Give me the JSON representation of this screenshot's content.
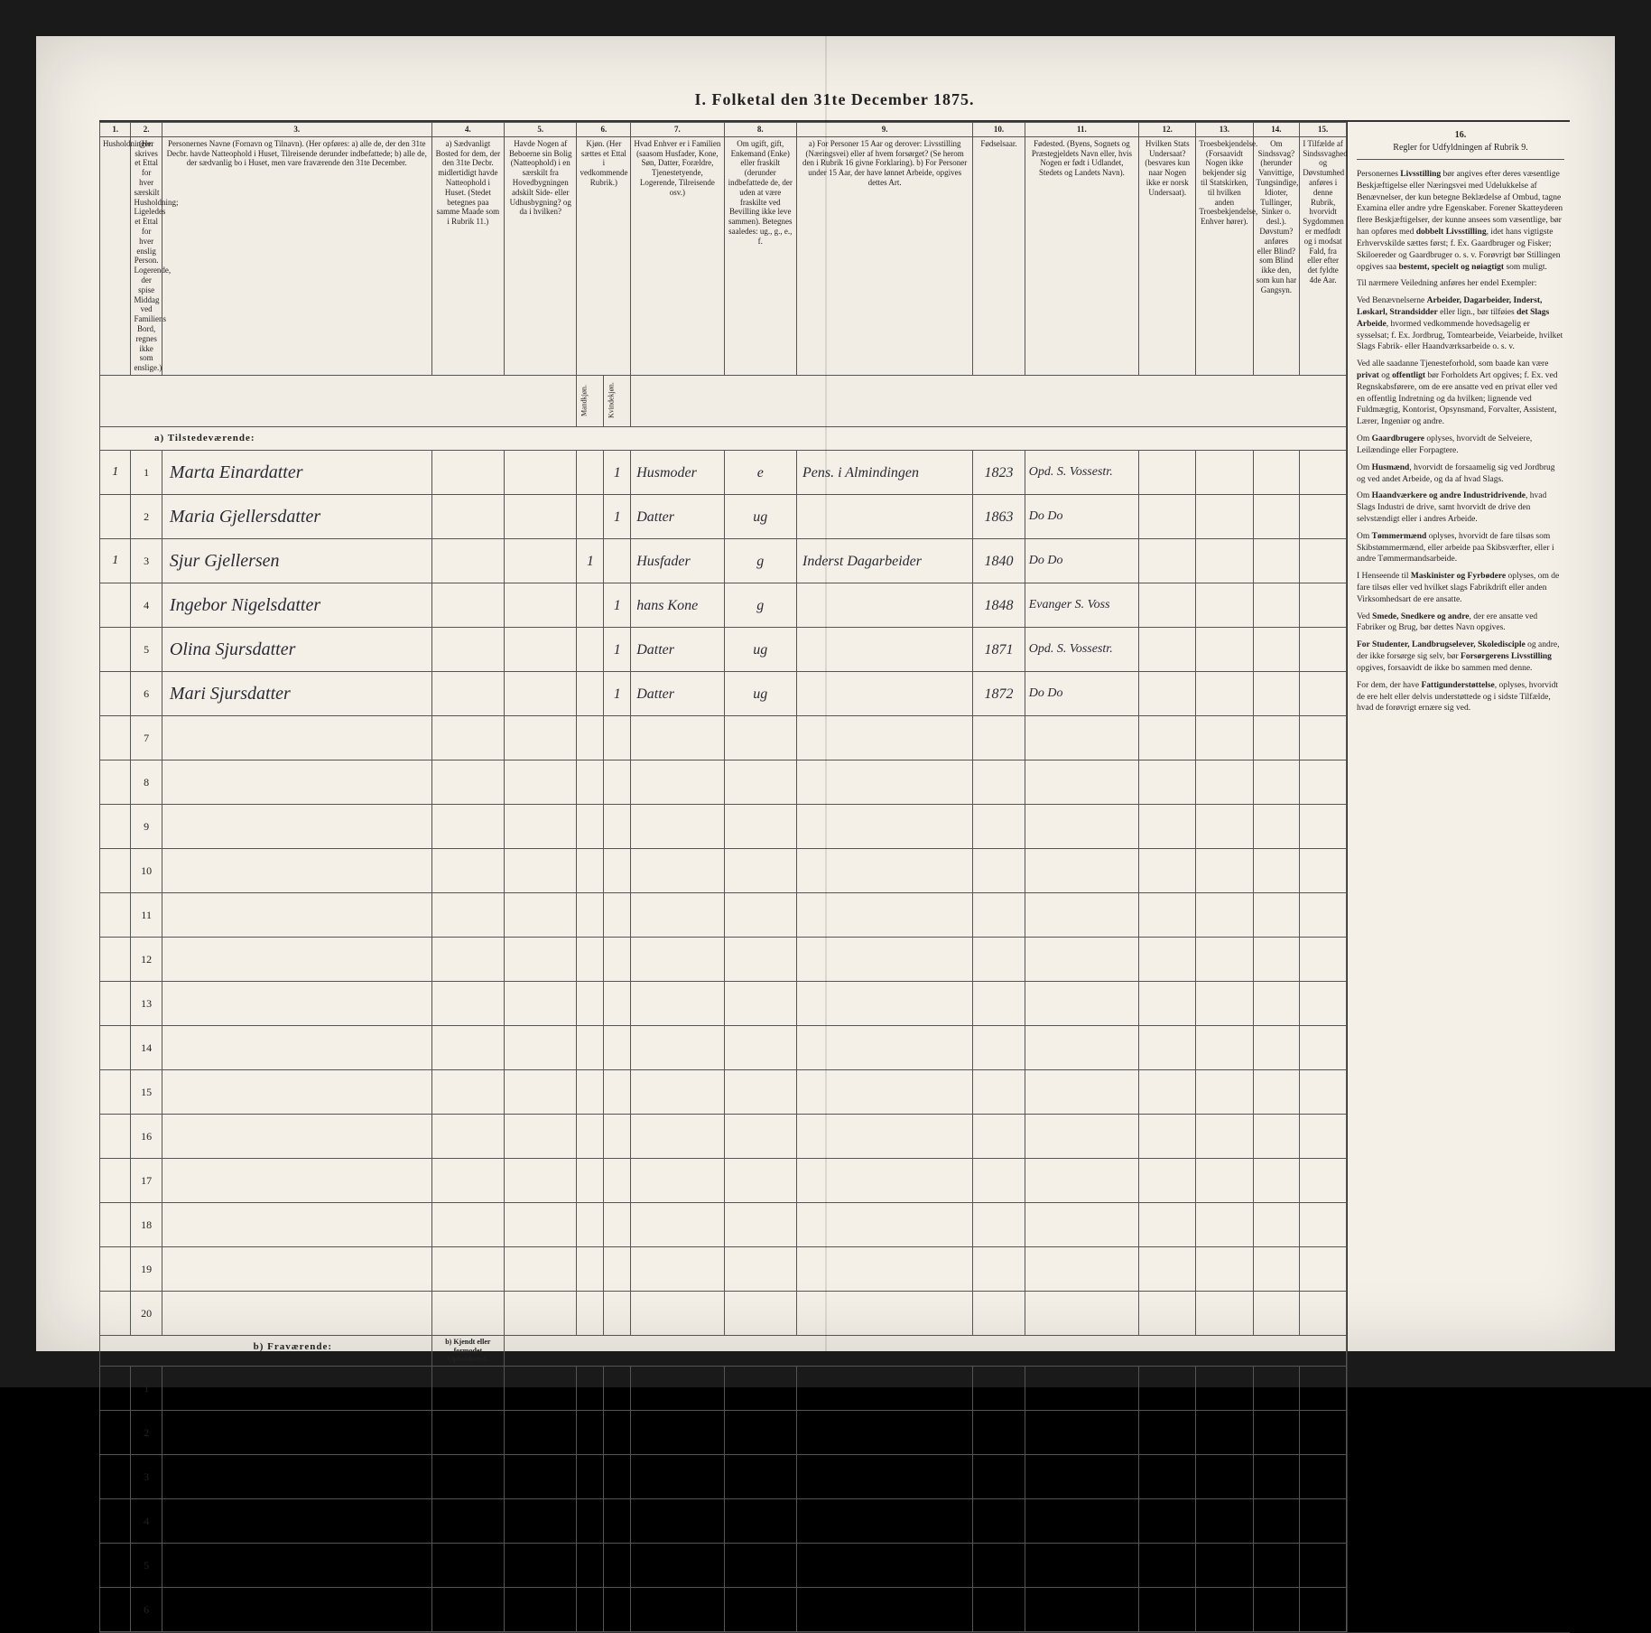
{
  "title": "I.  Folketal den 31te December 1875.",
  "columns": [
    {
      "num": "1.",
      "label": "Husholdninger."
    },
    {
      "num": "2.",
      "label": "(Her skrives et Ettal for hver særskilt Husholdning; Ligeledes et Ettal for hver enslig Person. Logerende, der spise Middag ved Familiens Bord, regnes ikke som enslige.)"
    },
    {
      "num": "3.",
      "label": "Personernes Navne (Fornavn og Tilnavn). (Her opføres: a) alle de, der den 31te Decbr. havde Natteophold i Huset, Tilreisende derunder indbefattede; b) alle de, der sædvanlig bo i Huset, men vare fraværende den 31te December."
    },
    {
      "num": "4.",
      "label": "a) Sædvanligt Bosted for dem, der den 31te Decbr. midlertidigt havde Natteophold i Huset. (Stedet betegnes paa samme Maade som i Rubrik 11.)"
    },
    {
      "num": "5.",
      "label": "Havde Nogen af Beboerne sin Bolig (Natteophold) i en særskilt fra Hovedbygningen adskilt Side- eller Udhusbygning? og da i hvilken?"
    },
    {
      "num": "6.",
      "label": "Kjøn. (Her sættes et Ettal i vedkommende Rubrik.)",
      "sub": [
        "Mandkjøn.",
        "Kvindekjøn."
      ]
    },
    {
      "num": "7.",
      "label": "Hvad Enhver er i Familien (saasom Husfader, Kone, Søn, Datter, Forældre, Tjenestetyende, Logerende, Tilreisende osv.)"
    },
    {
      "num": "8.",
      "label": "Om ugift, gift, Enkemand (Enke) eller fraskilt (derunder indbefattede de, der uden at være fraskilte ved Bevilling ikke leve sammen). Betegnes saaledes: ug., g., e., f."
    },
    {
      "num": "9.",
      "label": "a) For Personer 15 Aar og derover: Livsstilling (Næringsvei) eller af hvem forsørget? (Se herom den i Rubrik 16 givne Forklaring). b) For Personer under 15 Aar, der have lønnet Arbeide, opgives dettes Art."
    },
    {
      "num": "10.",
      "label": "Fødselsaar."
    },
    {
      "num": "11.",
      "label": "Fødested. (Byens, Sognets og Præstegjeldets Navn eller, hvis Nogen er født i Udlandet, Stedets og Landets Navn)."
    },
    {
      "num": "12.",
      "label": "Hvilken Stats Undersaat? (besvares kun naar Nogen ikke er norsk Undersaat)."
    },
    {
      "num": "13.",
      "label": "Troesbekjendelse. (Forsaavidt Nogen ikke bekjender sig til Statskirken, til hvilken anden Troesbekjendelse, Enhver hører)."
    },
    {
      "num": "14.",
      "label": "Om Sindssvag? (herunder Vanvittige, Tungsindige, Idioter, Tullinger, Sinker o. desl.). Døvstum? anføres eller Blind? som Blind ikke den, som kun har Gangsyn."
    },
    {
      "num": "15.",
      "label": "I Tilfælde af Sindssvaghed og Døvstumhed anføres i denne Rubrik, hvorvidt Sygdommen er medfødt og i modsat Fald, fra eller efter det fyldte 4de Aar."
    }
  ],
  "instructions_header": "Regler for Udfyldningen af Rubrik 9.",
  "instructions": [
    "Personernes <b>Livsstilling</b> bør angives efter deres væsentlige Beskjæftigelse eller Næringsvei med Udelukkelse af Benævnelser, der kun betegne Beklædelse af Ombud, tagne Examina eller andre ydre Egenskaber. Forener Skatteyderen flere Beskjæftigelser, der kunne ansees som væsentlige, bør han opføres med <b>dobbelt Livsstilling</b>, idet hans vigtigste Erhvervskilde sættes først; f. Ex. Gaardbruger og Fisker; Skiloereder og Gaardbruger o. s. v. Forøvrigt bør Stillingen opgives saa <b>bestemt, specielt og nøiagtigt</b> som muligt.",
    "Til nærmere Veiledning anføres her endel Exempler:",
    "Ved Benævnelserne <b>Arbeider, Dagarbeider, Inderst, Løskarl, Strandsidder</b> eller lign., bør tilføies <b>det Slags Arbeide</b>, hvormed vedkommende hovedsagelig er sysselsat; f. Ex. Jordbrug, Tomtearbeide, Veiarbeide, hvilket Slags Fabrik- eller Haandværksarbeide o. s. v.",
    "Ved alle saadanne Tjenesteforhold, som baade kan være <b>privat</b> og <b>offentligt</b> bør Forholdets Art opgives; f. Ex. ved Regnskabsførere, om de ere ansatte ved en privat eller ved en offentlig Indretning og da hvilken; lignende ved Fuldmægtig, Kontorist, Opsynsmand, Forvalter, Assistent, Lærer, Ingeniør og andre.",
    "Om <b>Gaardbrugere</b> oplyses, hvorvidt de Selveiere, Leilændinge eller Forpagtere.",
    "Om <b>Husmænd</b>, hvorvidt de forsaamelig sig ved Jordbrug og ved andet Arbeide, og da af hvad Slags.",
    "Om <b>Haandværkere og andre Industridrivende</b>, hvad Slags Industri de drive, samt hvorvidt de drive den selvstændigt eller i andres Arbeide.",
    "Om <b>Tømmermænd</b> oplyses, hvorvidt de fare tilsøs som Skibstømmermænd, eller arbeide paa Skibsværfter, eller i andre Tømmermandsarbeide.",
    "I Henseende til <b>Maskinister og Fyrbødere</b> oplyses, om de fare tilsøs eller ved hvilket slags Fabrikdrift eller anden Virksomhedsart de ere ansatte.",
    "Ved <b>Smede, Snedkere og andre</b>, der ere ansatte ved Fabriker og Brug, bør dettes Navn opgives.",
    "<b>For Studenter, Landbrugselever, Skoledisciple</b> og andre, der ikke forsørge sig selv, bør <b>Forsørgerens Livsstilling</b> opgives, forsaavidt de ikke bo sammen med denne.",
    "For dem, der have <b>Fattigunderstøttelse</b>, oplyses, hvorvidt de ere helt eller delvis understøttede og i sidste Tilfælde, hvad de forøvrigt ernære sig ved."
  ],
  "present_label": "a) Tilstedeværende:",
  "absent_label": "b) Fraværende:",
  "absent_col4": "b) Kjendt eller formodet Opholdssted.",
  "rows": [
    {
      "hh": "1",
      "n": "1",
      "name": "Marta Einardatter",
      "c6a": "",
      "c6b": "1",
      "c7": "Husmoder",
      "c8": "e",
      "c9": "Pens. i Almindingen",
      "c10": "1823",
      "c11": "Opd. S. Vossestr."
    },
    {
      "hh": "",
      "n": "2",
      "name": "Maria Gjellersdatter",
      "c6a": "",
      "c6b": "1",
      "c7": "Datter",
      "c8": "ug",
      "c9": "",
      "c10": "1863",
      "c11": "Do   Do"
    },
    {
      "hh": "1",
      "n": "3",
      "name": "Sjur Gjellersen",
      "c6a": "1",
      "c6b": "",
      "c7": "Husfader",
      "c8": "g",
      "c9": "Inderst Dagarbeider",
      "c10": "1840",
      "c11": "Do   Do"
    },
    {
      "hh": "",
      "n": "4",
      "name": "Ingebor Nigelsdatter",
      "c6a": "",
      "c6b": "1",
      "c7": "hans Kone",
      "c8": "g",
      "c9": "",
      "c10": "1848",
      "c11": "Evanger S. Voss"
    },
    {
      "hh": "",
      "n": "5",
      "name": "Olina Sjursdatter",
      "c6a": "",
      "c6b": "1",
      "c7": "Datter",
      "c8": "ug",
      "c9": "",
      "c10": "1871",
      "c11": "Opd. S. Vossestr."
    },
    {
      "hh": "",
      "n": "6",
      "name": "Mari Sjursdatter",
      "c6a": "",
      "c6b": "1",
      "c7": "Datter",
      "c8": "ug",
      "c9": "",
      "c10": "1872",
      "c11": "Do   Do"
    }
  ],
  "blank_rows": [
    7,
    8,
    9,
    10,
    11,
    12,
    13,
    14,
    15,
    16,
    17,
    18,
    19,
    20
  ],
  "absent_rows": [
    1,
    2,
    3,
    4,
    5,
    6
  ]
}
